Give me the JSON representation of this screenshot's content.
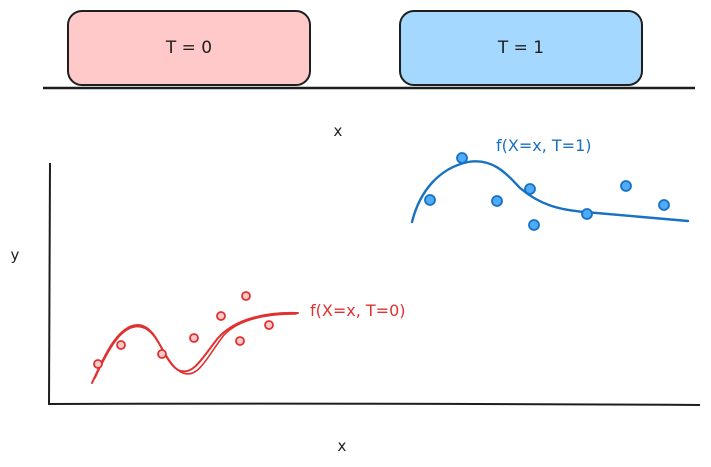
{
  "treatment_boxes": [
    {
      "label": "T = 0",
      "fill": "#ffc9c9"
    },
    {
      "label": "T = 1",
      "fill": "#a5d8ff"
    }
  ],
  "top_axis_label": "x",
  "plot": {
    "y_label": "y",
    "x_label": "x"
  },
  "curves": {
    "control": {
      "label": "f(X=x, T=0)",
      "color": "#e03131"
    },
    "treated": {
      "label": "f(X=x, T=1)",
      "color": "#1971c2",
      "point_fill": "#4dabf7"
    }
  },
  "colors": {
    "stroke": "#1e1e1e"
  }
}
